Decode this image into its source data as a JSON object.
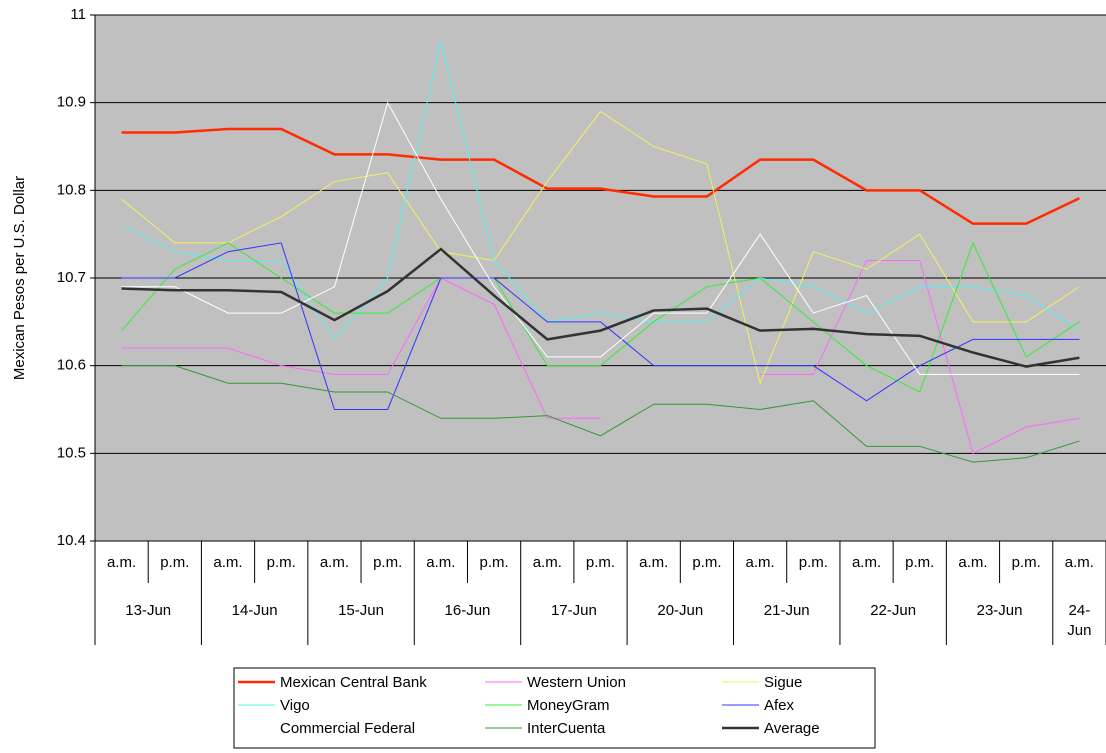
{
  "chart_data": {
    "type": "line",
    "y_label": "Mexican Pesos per U.S. Dollar",
    "groups": [
      {
        "label": "13-Jun",
        "categories": [
          "a.m.",
          "p.m."
        ]
      },
      {
        "label": "14-Jun",
        "categories": [
          "a.m.",
          "p.m."
        ]
      },
      {
        "label": "15-Jun",
        "categories": [
          "a.m.",
          "p.m."
        ]
      },
      {
        "label": "16-Jun",
        "categories": [
          "a.m.",
          "p.m."
        ]
      },
      {
        "label": "17-Jun",
        "categories": [
          "a.m.",
          "p.m."
        ]
      },
      {
        "label": "20-Jun",
        "categories": [
          "a.m.",
          "p.m."
        ]
      },
      {
        "label": "21-Jun",
        "categories": [
          "a.m.",
          "p.m."
        ]
      },
      {
        "label": "22-Jun",
        "categories": [
          "a.m.",
          "p.m."
        ]
      },
      {
        "label": "23-Jun",
        "categories": [
          "a.m.",
          "p.m."
        ]
      },
      {
        "label": "24-Jun",
        "categories": [
          "a.m."
        ]
      }
    ],
    "ylim": [
      10.4,
      11
    ],
    "yticks": [
      10.4,
      10.5,
      10.6,
      10.7,
      10.8,
      10.9,
      11
    ],
    "grid": true,
    "legend": "bottom",
    "series": [
      {
        "name": "Mexican Central Bank",
        "color": "#ff2a00",
        "width": 2.5,
        "values": [
          10.866,
          10.866,
          10.87,
          10.87,
          10.841,
          10.841,
          10.835,
          10.835,
          10.802,
          10.802,
          10.793,
          10.793,
          10.835,
          10.835,
          10.8,
          10.8,
          10.762,
          10.762,
          10.791
        ]
      },
      {
        "name": "Western Union",
        "color": "#ff66ff",
        "width": 1,
        "values": [
          10.62,
          10.62,
          10.62,
          10.6,
          10.59,
          10.59,
          10.7,
          10.67,
          10.54,
          10.54,
          null,
          null,
          10.59,
          10.59,
          10.72,
          10.72,
          10.5,
          10.53,
          10.54
        ]
      },
      {
        "name": "Sigue",
        "color": "#f2f25a",
        "width": 1,
        "values": [
          10.79,
          10.74,
          10.74,
          10.77,
          10.81,
          10.82,
          10.73,
          10.72,
          10.81,
          10.89,
          10.85,
          10.83,
          10.58,
          10.73,
          10.71,
          10.75,
          10.65,
          10.65,
          10.69
        ]
      },
      {
        "name": "Vigo",
        "color": "#55f0f0",
        "width": 1,
        "values": [
          10.76,
          10.73,
          10.72,
          10.72,
          10.63,
          10.7,
          10.97,
          10.72,
          10.65,
          10.66,
          10.65,
          10.65,
          10.7,
          10.69,
          10.66,
          10.69,
          10.69,
          10.68,
          10.64
        ]
      },
      {
        "name": "MoneyGram",
        "color": "#33ee33",
        "width": 1,
        "values": [
          10.64,
          10.71,
          10.74,
          10.7,
          10.66,
          10.66,
          10.7,
          10.7,
          10.6,
          10.6,
          10.65,
          10.69,
          10.7,
          10.65,
          10.6,
          10.57,
          10.74,
          10.61,
          10.65
        ]
      },
      {
        "name": "Afex",
        "color": "#3333ff",
        "width": 1,
        "values": [
          10.7,
          10.7,
          10.73,
          10.74,
          10.55,
          10.55,
          10.7,
          10.7,
          10.65,
          10.65,
          10.6,
          10.6,
          10.6,
          10.6,
          10.56,
          10.6,
          10.63,
          10.63,
          10.63
        ]
      },
      {
        "name": "Commercial Federal",
        "color": "#ffffff",
        "width": 1,
        "values": [
          10.69,
          10.69,
          10.66,
          10.66,
          10.69,
          10.9,
          10.79,
          10.69,
          10.61,
          10.61,
          10.66,
          10.66,
          10.75,
          10.66,
          10.68,
          10.59,
          10.59,
          10.59,
          10.59
        ]
      },
      {
        "name": "InterCuenta",
        "color": "#339933",
        "width": 1,
        "values": [
          10.6,
          10.6,
          10.58,
          10.58,
          10.57,
          10.57,
          10.54,
          10.54,
          10.543,
          10.52,
          10.556,
          10.556,
          10.55,
          10.56,
          10.508,
          10.508,
          10.49,
          10.495,
          10.514
        ]
      },
      {
        "name": "Average",
        "color": "#333333",
        "width": 2.5,
        "values": [
          10.688,
          10.686,
          10.686,
          10.684,
          10.652,
          10.685,
          10.733,
          10.68,
          10.63,
          10.64,
          10.663,
          10.665,
          10.64,
          10.642,
          10.636,
          10.634,
          10.615,
          10.599,
          10.609
        ]
      }
    ]
  }
}
